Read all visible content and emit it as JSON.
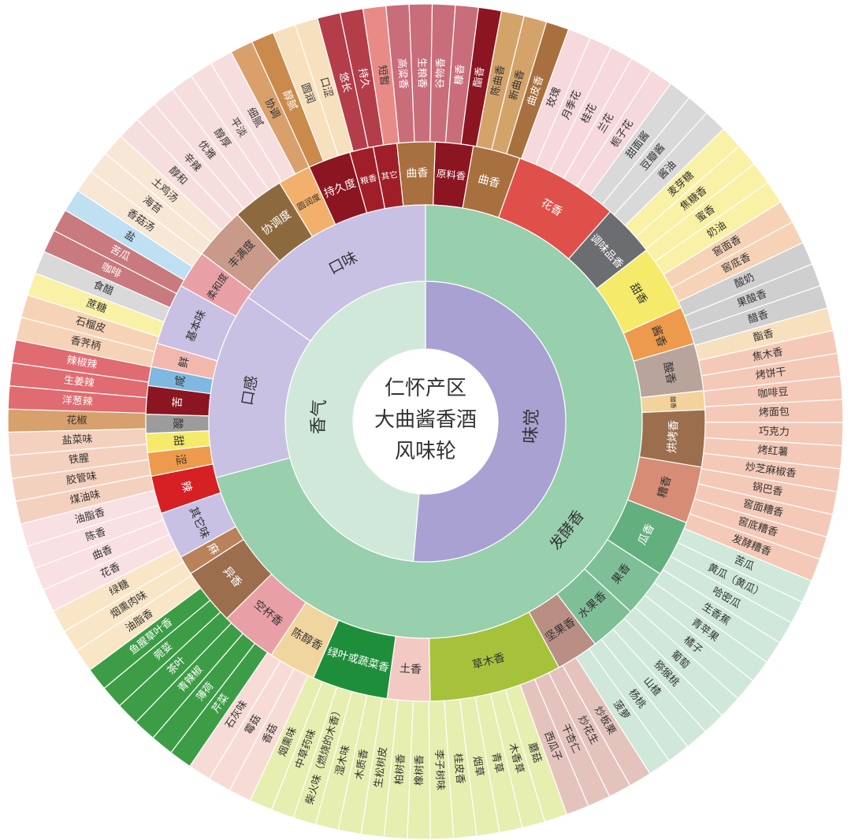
{
  "title_lines": [
    "仁怀产区",
    "大曲酱香酒",
    "风味轮"
  ],
  "colors": {
    "dark_red": "#8b1520",
    "red": "#d8383a",
    "lavender": "#c9c1e3",
    "lavender_inner": "#a9a1d2",
    "green_inner": "#cfe8d9",
    "green_ring": "#98cfad",
    "gray": "#6c6d70",
    "yellow": "#f5ea6a",
    "orange": "#ee9a4c",
    "taupe": "#b8a49b",
    "brown": "#9b6e4e",
    "pink": "#e8a0a6",
    "sand": "#f1d59e",
    "leaf": "#1f8e3b",
    "olive": "#a6c23b",
    "teal": "#63b07e"
  },
  "inner_ring": [
    {
      "label": "味觉",
      "color": "#a9a1d2"
    },
    {
      "label": "香气",
      "color": "#cfe8d9"
    }
  ],
  "middle_ring": [
    {
      "label": "口感",
      "color": "#c9c1e3"
    },
    {
      "label": "口味",
      "color": "#c9c1e3"
    },
    {
      "label": "发酵香",
      "color": "#98cfad"
    }
  ],
  "outer_ring": [
    {
      "label": "原料香",
      "color": "#8b1520"
    },
    {
      "label": "曲香",
      "color": "#a8703e"
    },
    {
      "label": "花香",
      "color": "#e0504a"
    },
    {
      "label": "调味品香",
      "color": "#6c6d70"
    },
    {
      "label": "甜香",
      "color": "#f5ea6a"
    },
    {
      "label": "酱香",
      "color": "#ee9a4c"
    },
    {
      "label": "酸香",
      "color": "#b8a49b"
    },
    {
      "label": "醋香",
      "color": "#f3d29c"
    },
    {
      "label": "烘烤香",
      "color": "#9b6e4e"
    },
    {
      "label": "糟香",
      "color": "#d78c75"
    },
    {
      "label": "瓜香",
      "color": "#63b07e"
    },
    {
      "label": "果香",
      "color": "#7fbf97"
    },
    {
      "label": "水果香",
      "color": "#7fbf97"
    },
    {
      "label": "坚果香",
      "color": "#b98e83"
    },
    {
      "label": "草木香",
      "color": "#a6c23b"
    },
    {
      "label": "土香",
      "color": "#f2c9c3"
    },
    {
      "label": "绿叶或蔬菜香",
      "color": "#1f8e3b"
    },
    {
      "label": "陈醇香",
      "color": "#f1d59e"
    },
    {
      "label": "空杯香",
      "color": "#e8a0a6"
    },
    {
      "label": "异香",
      "color": "#9b6e4e"
    },
    {
      "label": "麻",
      "color": "#b9825a"
    },
    {
      "label": "其它味",
      "color": "#c9c1e3"
    },
    {
      "label": "辣",
      "color": "#d62024"
    },
    {
      "label": "涩",
      "color": "#ee9a4c"
    },
    {
      "label": "甜",
      "color": "#f5ea6a"
    },
    {
      "label": "酸",
      "color": "#9c9c9c"
    },
    {
      "label": "苦",
      "color": "#8b1520"
    },
    {
      "label": "咸",
      "color": "#7fb8e0"
    },
    {
      "label": "鲜",
      "color": "#f2b8b0"
    },
    {
      "label": "基本味",
      "color": "#c9c1e3"
    },
    {
      "label": "柔和度",
      "color": "#e8a0a6"
    },
    {
      "label": "丰满度",
      "color": "#c99a8a"
    },
    {
      "label": "协调度",
      "color": "#8c6a3e"
    },
    {
      "label": "圆润度",
      "color": "#f3b06c"
    },
    {
      "label": "持久度",
      "color": "#8b1520"
    },
    {
      "label": "粮香",
      "color": "#a01e28"
    },
    {
      "label": "其它",
      "color": "#a01e28"
    },
    {
      "label": "曲香",
      "color": "#a8703e"
    }
  ],
  "leaf_ring": [
    {
      "label": "悠长",
      "color": "#b43d4a"
    },
    {
      "label": "持久",
      "color": "#b43d4a"
    },
    {
      "label": "短暂",
      "color": "#e88b86"
    },
    {
      "label": "高粱香",
      "color": "#c96d7a"
    },
    {
      "label": "生粮香",
      "color": "#c96d7a"
    },
    {
      "label": "谷物香",
      "color": "#c96d7a"
    },
    {
      "label": "糠香",
      "color": "#c96d7a"
    },
    {
      "label": "酯香",
      "color": "#8b1520"
    },
    {
      "label": "陈曲香",
      "color": "#d4a36a"
    },
    {
      "label": "新曲香",
      "color": "#d4a36a"
    },
    {
      "label": "曲皮香",
      "color": "#a8703e"
    },
    {
      "label": "玫瑰",
      "color": "#f6d9dc"
    },
    {
      "label": "月季花",
      "color": "#f6d9dc"
    },
    {
      "label": "桂花",
      "color": "#f6d9dc"
    },
    {
      "label": "兰花",
      "color": "#f6d9dc"
    },
    {
      "label": "栀子花",
      "color": "#f6d9dc"
    },
    {
      "label": "甜面酱",
      "color": "#d9d9d9"
    },
    {
      "label": "豆瓣酱",
      "color": "#d9d9d9"
    },
    {
      "label": "酱油",
      "color": "#d9d9d9"
    },
    {
      "label": "麦芽糖",
      "color": "#f8f1a6"
    },
    {
      "label": "焦糖香",
      "color": "#f8f1a6"
    },
    {
      "label": "蜜香",
      "color": "#f8f1a6"
    },
    {
      "label": "奶油",
      "color": "#f8f1a6"
    },
    {
      "label": "窖面香",
      "color": "#f6d3b6"
    },
    {
      "label": "窖底香",
      "color": "#f6d3b6"
    },
    {
      "label": "酸奶",
      "color": "#cfcfcf"
    },
    {
      "label": "果酸香",
      "color": "#cfcfcf"
    },
    {
      "label": "醋香",
      "color": "#cfcfcf"
    },
    {
      "label": "酯香",
      "color": "#f7e0bd"
    },
    {
      "label": "焦木香",
      "color": "#f4c9b7"
    },
    {
      "label": "烤饼干",
      "color": "#f4c9b7"
    },
    {
      "label": "咖啡豆",
      "color": "#f4c9b7"
    },
    {
      "label": "烤面包",
      "color": "#f4c9b7"
    },
    {
      "label": "巧克力",
      "color": "#f4c9b7"
    },
    {
      "label": "烤红薯",
      "color": "#f4c9b7"
    },
    {
      "label": "炒芝麻椒香",
      "color": "#f4c9b7"
    },
    {
      "label": "锅巴香",
      "color": "#f4c9b7"
    },
    {
      "label": "窖面糟香",
      "color": "#f4c9b7"
    },
    {
      "label": "窖底糟香",
      "color": "#f4c9b7"
    },
    {
      "label": "发酵糟香",
      "color": "#f4c9b7"
    },
    {
      "label": "苦瓜",
      "color": "#cfe8d9"
    },
    {
      "label": "黄瓜（黄瓜）",
      "color": "#cfe8d9"
    },
    {
      "label": "哈密瓜",
      "color": "#cfe8d9"
    },
    {
      "label": "生香蕉",
      "color": "#cfe8d9"
    },
    {
      "label": "青苹果",
      "color": "#cfe8d9"
    },
    {
      "label": "橘子",
      "color": "#cfe8d9"
    },
    {
      "label": "葡萄",
      "color": "#cfe8d9"
    },
    {
      "label": "猕猴桃",
      "color": "#cfe8d9"
    },
    {
      "label": "山楂",
      "color": "#cfe8d9"
    },
    {
      "label": "杨桃",
      "color": "#cfe8d9"
    },
    {
      "label": "菠萝",
      "color": "#cfe8d9"
    },
    {
      "label": "炒板栗",
      "color": "#e5c3bd"
    },
    {
      "label": "炒花生",
      "color": "#e5c3bd"
    },
    {
      "label": "干杏仁",
      "color": "#e5c3bd"
    },
    {
      "label": "西瓜子",
      "color": "#e5c3bd"
    },
    {
      "label": "蘑菇",
      "color": "#e6eeb0"
    },
    {
      "label": "木香草",
      "color": "#e6eeb0"
    },
    {
      "label": "青草",
      "color": "#e6eeb0"
    },
    {
      "label": "烟草",
      "color": "#e6eeb0"
    },
    {
      "label": "桂皮香",
      "color": "#e6eeb0"
    },
    {
      "label": "李子树味",
      "color": "#e6eeb0"
    },
    {
      "label": "橡树香",
      "color": "#e6eeb0"
    },
    {
      "label": "柏树香",
      "color": "#e6eeb0"
    },
    {
      "label": "生松树皮",
      "color": "#e6eeb0"
    },
    {
      "label": "木质香",
      "color": "#e6eeb0"
    },
    {
      "label": "湿木味",
      "color": "#e6eeb0"
    },
    {
      "label": "柴火味（燃烧的木香）",
      "color": "#e6eeb0"
    },
    {
      "label": "中草药味",
      "color": "#e6eeb0"
    },
    {
      "label": "烟熏味",
      "color": "#e6eeb0"
    },
    {
      "label": "香菇",
      "color": "#f7dcd6"
    },
    {
      "label": "霉菇",
      "color": "#f7dcd6"
    },
    {
      "label": "石灰味",
      "color": "#f7dcd6"
    },
    {
      "label": "芹菜",
      "color": "#3d9d46"
    },
    {
      "label": "薄荷",
      "color": "#3d9d46"
    },
    {
      "label": "青辣椒",
      "color": "#3d9d46"
    },
    {
      "label": "茶叶",
      "color": "#3d9d46"
    },
    {
      "label": "菀荽",
      "color": "#3d9d46"
    },
    {
      "label": "鱼腥草叶香",
      "color": "#3d9d46"
    },
    {
      "label": "油脂香",
      "color": "#f9e6c6"
    },
    {
      "label": "烟熏肉味",
      "color": "#f9e6c6"
    },
    {
      "label": "绿糖",
      "color": "#f9e6c6"
    },
    {
      "label": "花香",
      "color": "#f9e0e2"
    },
    {
      "label": "曲香",
      "color": "#f9e0e2"
    },
    {
      "label": "陈香",
      "color": "#f9e0e2"
    },
    {
      "label": "油脂香",
      "color": "#f9e0e2"
    },
    {
      "label": "煤油味",
      "color": "#f4d0bf"
    },
    {
      "label": "胶管味",
      "color": "#f4d0bf"
    },
    {
      "label": "铁腥",
      "color": "#f4d0bf"
    },
    {
      "label": "盐菜味",
      "color": "#f4d0bf"
    },
    {
      "label": "花椒",
      "color": "#d8a06c"
    },
    {
      "label": "洋葱辣",
      "color": "#e06b70"
    },
    {
      "label": "生姜辣",
      "color": "#e06b70"
    },
    {
      "label": "辣椒辣",
      "color": "#e06b70"
    },
    {
      "label": "香荠柄",
      "color": "#f6d3b6"
    },
    {
      "label": "石榴皮",
      "color": "#f6d3b6"
    },
    {
      "label": "蔗糖",
      "color": "#f8f1a6"
    },
    {
      "label": "食醋",
      "color": "#d9d9d9"
    },
    {
      "label": "咖啡",
      "color": "#c87a7e"
    },
    {
      "label": "苦瓜",
      "color": "#c87a7e"
    },
    {
      "label": "盐",
      "color": "#bfdff3"
    },
    {
      "label": "香菇汤",
      "color": "#f7e7d5"
    },
    {
      "label": "海苔",
      "color": "#f7e7d5"
    },
    {
      "label": "土鸡汤",
      "color": "#f7e7d5"
    },
    {
      "label": "醇和",
      "color": "#f7dede"
    },
    {
      "label": "辛辣",
      "color": "#f7dede"
    },
    {
      "label": "优雅",
      "color": "#f7dede"
    },
    {
      "label": "醇厚",
      "color": "#f7dede"
    },
    {
      "label": "平淡",
      "color": "#f7dede"
    },
    {
      "label": "细腻",
      "color": "#f7dede"
    },
    {
      "label": "协调",
      "color": "#d9a06c"
    },
    {
      "label": "醇腻",
      "color": "#c98a4c"
    },
    {
      "label": "圆润",
      "color": "#f7e0bd"
    },
    {
      "label": "口涩",
      "color": "#f7e0bd"
    }
  ]
}
